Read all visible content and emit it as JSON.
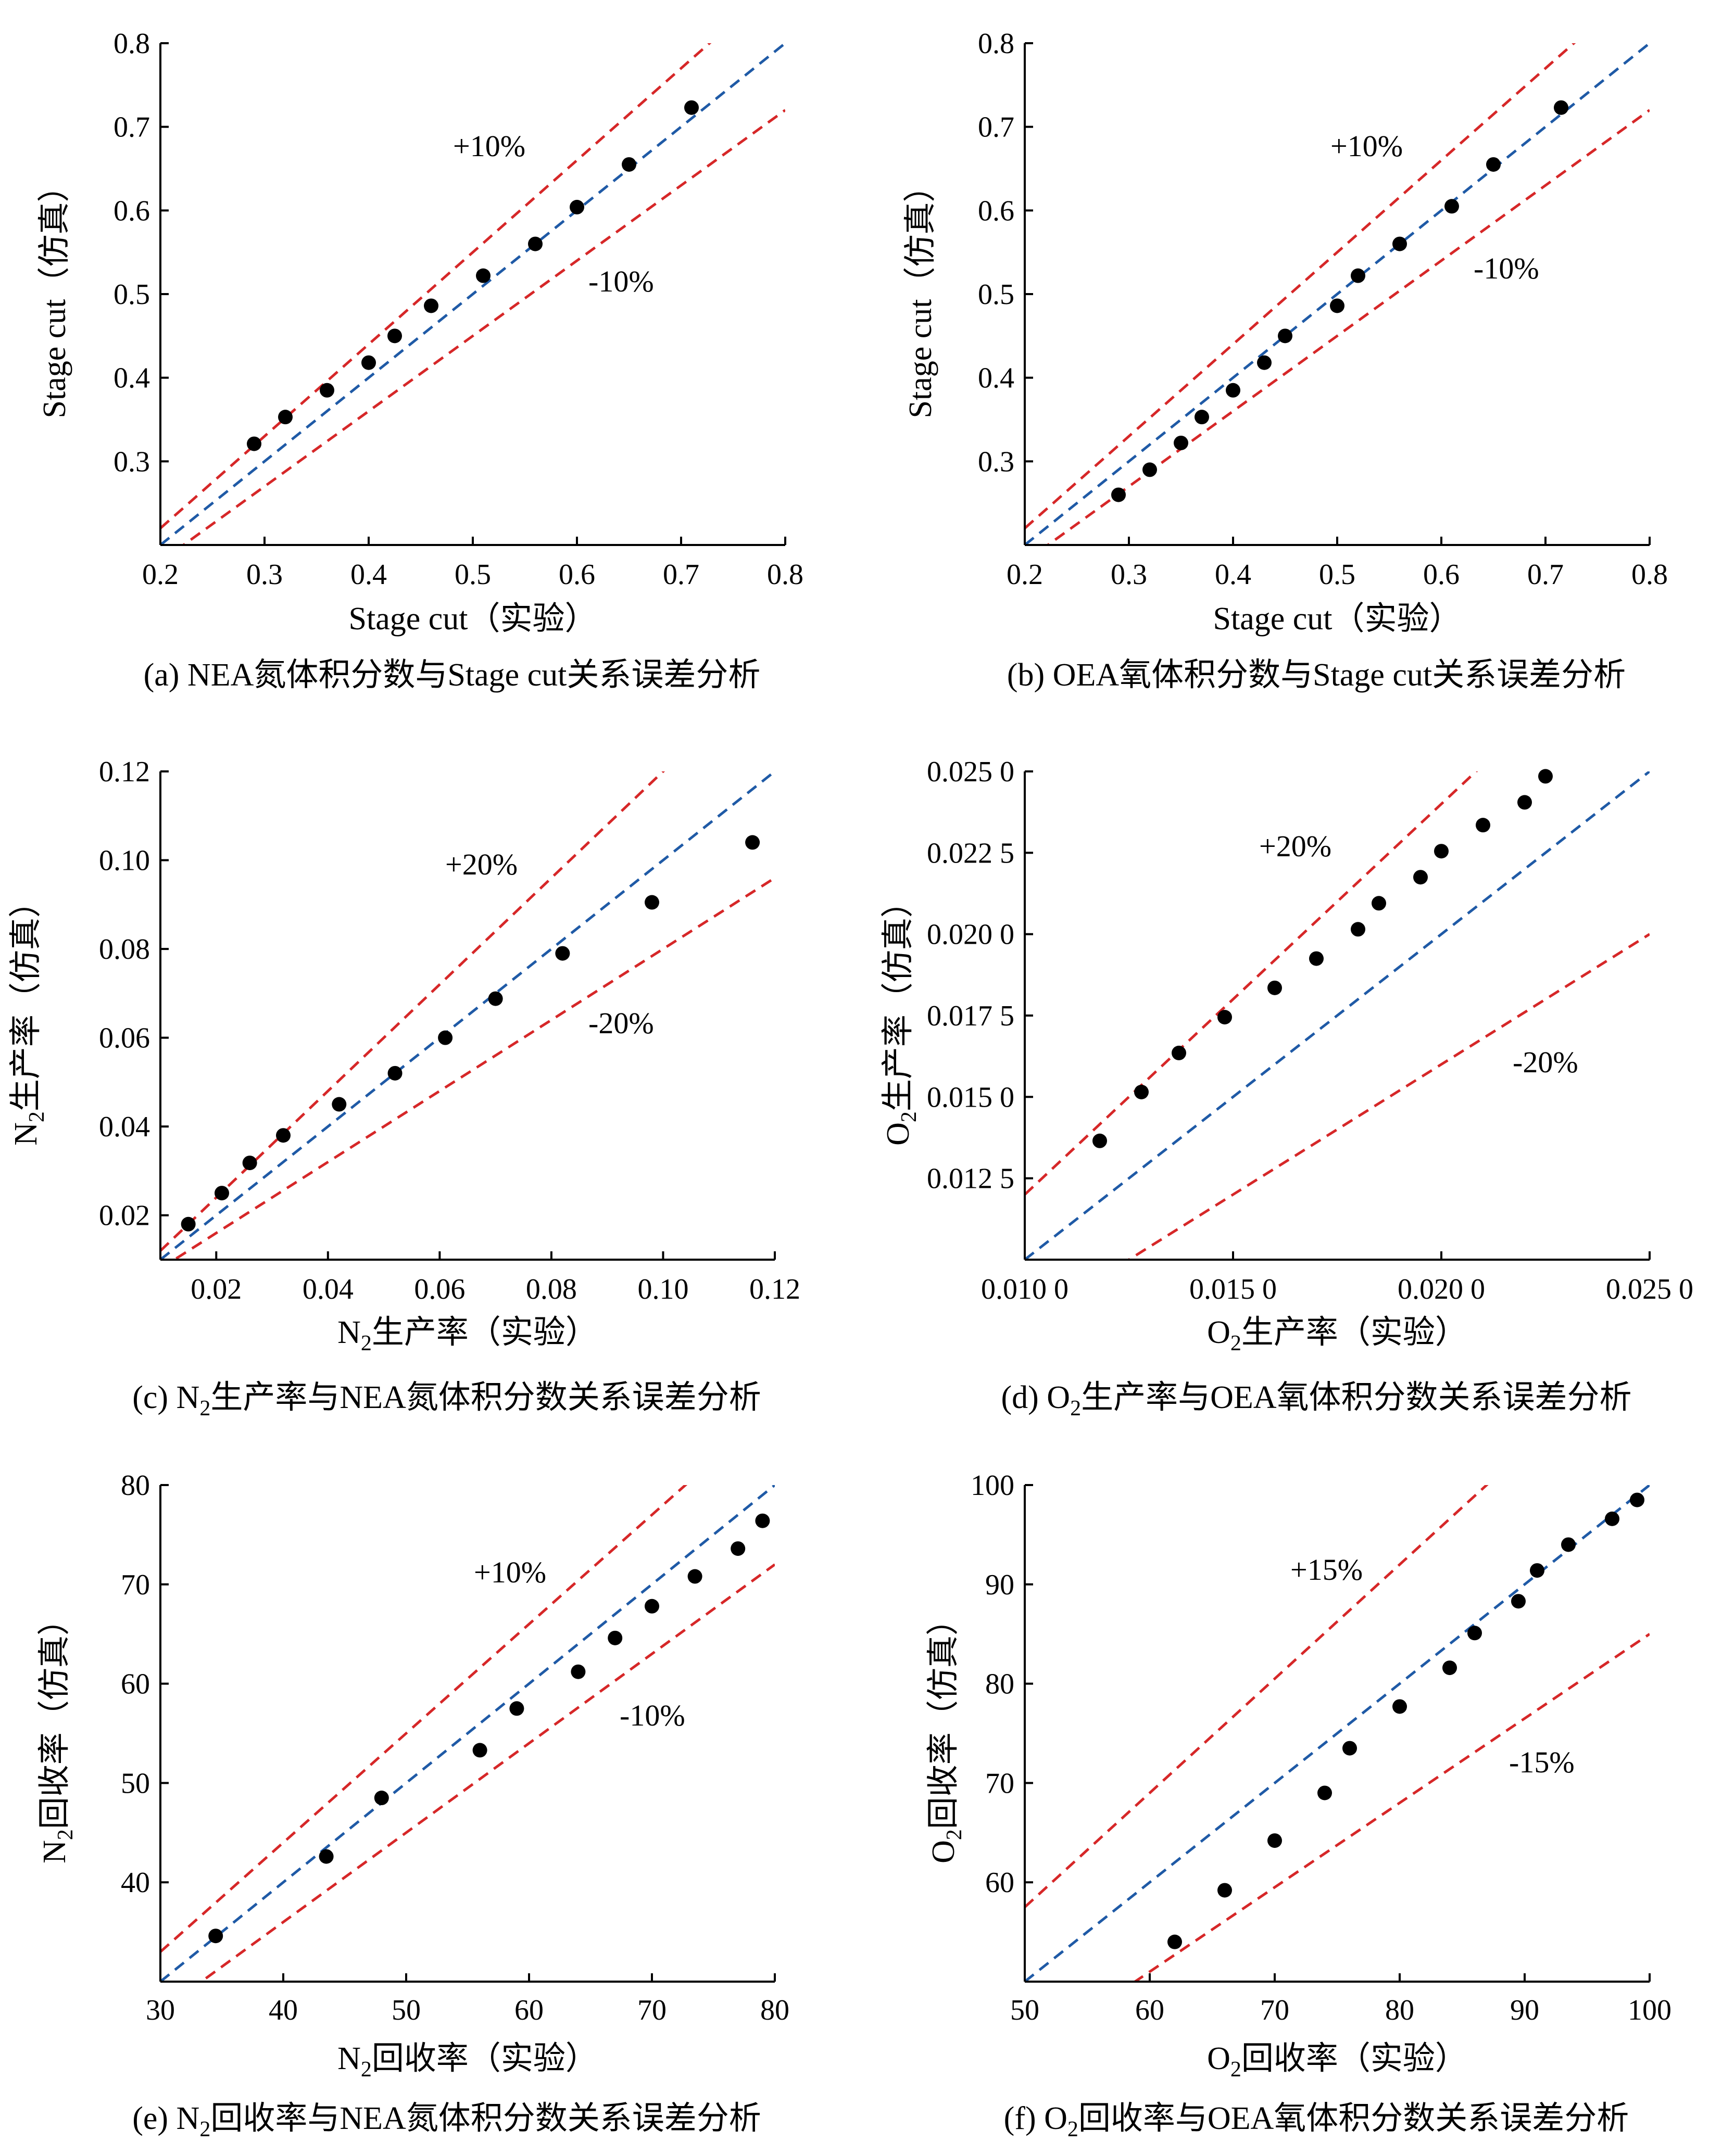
{
  "colors": {
    "upper_lower_lines": "#d62728",
    "ideal_line": "#1f5aa6",
    "points": "#000000"
  },
  "chart_data": [
    {
      "id": "a",
      "type": "scatter",
      "caption": "(a) NEA氮体积分数与Stage cut关系误差分析",
      "xlabel": {
        "text": "Stage cut（实验）"
      },
      "ylabel": {
        "text": "Stage cut（仿真）"
      },
      "xlim": [
        0.2,
        0.8
      ],
      "ylim": [
        0.2,
        0.8
      ],
      "xticks": [
        "0.2",
        "0.3",
        "0.4",
        "0.5",
        "0.6",
        "0.7",
        "0.8"
      ],
      "yticks": [
        "0.3",
        "0.4",
        "0.5",
        "0.6",
        "0.7",
        "0.8"
      ],
      "ytick_values": [
        0.3,
        0.4,
        0.5,
        0.6,
        0.7,
        0.8
      ],
      "error_band": 0.1,
      "labels": {
        "upper": "+10%",
        "lower": "-10%"
      },
      "points": [
        [
          0.29,
          0.321
        ],
        [
          0.32,
          0.353
        ],
        [
          0.36,
          0.385
        ],
        [
          0.4,
          0.418
        ],
        [
          0.425,
          0.45
        ],
        [
          0.46,
          0.486
        ],
        [
          0.51,
          0.522
        ],
        [
          0.56,
          0.56
        ],
        [
          0.6,
          0.604
        ],
        [
          0.65,
          0.655
        ],
        [
          0.71,
          0.723
        ]
      ]
    },
    {
      "id": "b",
      "type": "scatter",
      "caption": "(b) OEA氧体积分数与Stage cut关系误差分析",
      "xlabel": {
        "text": "Stage cut（实验）"
      },
      "ylabel": {
        "text": "Stage cut（仿真）"
      },
      "xlim": [
        0.2,
        0.8
      ],
      "ylim": [
        0.2,
        0.8
      ],
      "xticks": [
        "0.2",
        "0.3",
        "0.4",
        "0.5",
        "0.6",
        "0.7",
        "0.8"
      ],
      "yticks": [
        "0.3",
        "0.4",
        "0.5",
        "0.6",
        "0.7",
        "0.8"
      ],
      "ytick_values": [
        0.3,
        0.4,
        0.5,
        0.6,
        0.7,
        0.8
      ],
      "error_band": 0.1,
      "labels": {
        "upper": "+10%",
        "lower": "-10%"
      },
      "points": [
        [
          0.29,
          0.26
        ],
        [
          0.32,
          0.29
        ],
        [
          0.35,
          0.322
        ],
        [
          0.37,
          0.353
        ],
        [
          0.4,
          0.385
        ],
        [
          0.43,
          0.418
        ],
        [
          0.45,
          0.45
        ],
        [
          0.5,
          0.486
        ],
        [
          0.52,
          0.522
        ],
        [
          0.56,
          0.56
        ],
        [
          0.61,
          0.605
        ],
        [
          0.65,
          0.655
        ],
        [
          0.715,
          0.723
        ]
      ]
    },
    {
      "id": "c",
      "type": "scatter",
      "caption_prefix": "(c) N",
      "caption_sub": "2",
      "caption_suffix": "生产率与NEA氮体积分数关系误差分析",
      "xlabel": {
        "main": "N",
        "sub": "2",
        "rest": "生产率（实验）"
      },
      "ylabel": {
        "main": "N",
        "sub": "2",
        "rest": "生产率（仿真）"
      },
      "xlim": [
        0.01,
        0.12
      ],
      "ylim": [
        0.01,
        0.12
      ],
      "xticks": [
        "0.02",
        "0.04",
        "0.06",
        "0.08",
        "0.10",
        "0.12"
      ],
      "xtick_values": [
        0.02,
        0.04,
        0.06,
        0.08,
        0.1,
        0.12
      ],
      "yticks": [
        "0.02",
        "0.04",
        "0.06",
        "0.08",
        "0.10",
        "0.12"
      ],
      "ytick_values": [
        0.02,
        0.04,
        0.06,
        0.08,
        0.1,
        0.12
      ],
      "error_band": 0.2,
      "labels": {
        "upper": "+20%",
        "lower": "-20%"
      },
      "points": [
        [
          0.015,
          0.018
        ],
        [
          0.021,
          0.025
        ],
        [
          0.026,
          0.0318
        ],
        [
          0.032,
          0.038
        ],
        [
          0.042,
          0.045
        ],
        [
          0.052,
          0.052
        ],
        [
          0.061,
          0.06
        ],
        [
          0.07,
          0.0688
        ],
        [
          0.082,
          0.079
        ],
        [
          0.098,
          0.0905
        ],
        [
          0.116,
          0.104
        ]
      ]
    },
    {
      "id": "d",
      "type": "scatter",
      "caption_prefix": "(d) O",
      "caption_sub": "2",
      "caption_suffix": "生产率与OEA氧体积分数关系误差分析",
      "xlabel": {
        "main": "O",
        "sub": "2",
        "rest": "生产率（实验）"
      },
      "ylabel": {
        "main": "O",
        "sub": "2",
        "rest": "生产率（仿真）"
      },
      "xlim": [
        0.01,
        0.025
      ],
      "ylim": [
        0.01,
        0.025
      ],
      "xticks": [
        "0.010 0",
        "0.015 0",
        "0.020 0",
        "0.025 0"
      ],
      "xtick_values": [
        0.01,
        0.015,
        0.02,
        0.025
      ],
      "yticks": [
        "0.012 5",
        "0.015 0",
        "0.017 5",
        "0.020 0",
        "0.022 5",
        "0.025 0"
      ],
      "ytick_values": [
        0.0125,
        0.015,
        0.0175,
        0.02,
        0.0225,
        0.025
      ],
      "error_band": 0.2,
      "labels": {
        "upper": "+20%",
        "lower": "-20%"
      },
      "points": [
        [
          0.0118,
          0.01365
        ],
        [
          0.0128,
          0.01515
        ],
        [
          0.0137,
          0.01635
        ],
        [
          0.0148,
          0.01745
        ],
        [
          0.016,
          0.01835
        ],
        [
          0.017,
          0.01925
        ],
        [
          0.018,
          0.02015
        ],
        [
          0.0185,
          0.02095
        ],
        [
          0.0195,
          0.02175
        ],
        [
          0.02,
          0.02255
        ],
        [
          0.021,
          0.02335
        ],
        [
          0.022,
          0.02405
        ],
        [
          0.0225,
          0.02485
        ]
      ]
    },
    {
      "id": "e",
      "type": "scatter",
      "caption_prefix": "(e) N",
      "caption_sub": "2",
      "caption_suffix": "回收率与NEA氮体积分数关系误差分析",
      "xlabel": {
        "main": "N",
        "sub": "2",
        "rest": "回收率（实验）"
      },
      "ylabel": {
        "main": "N",
        "sub": "2",
        "rest": "回收率（仿真）"
      },
      "xlim": [
        30,
        80
      ],
      "ylim": [
        30,
        80
      ],
      "xticks": [
        "30",
        "40",
        "50",
        "60",
        "70",
        "80"
      ],
      "xtick_values": [
        30,
        40,
        50,
        60,
        70,
        80
      ],
      "yticks": [
        "40",
        "50",
        "60",
        "70",
        "80"
      ],
      "ytick_values": [
        40,
        50,
        60,
        70,
        80
      ],
      "error_band": 0.1,
      "labels": {
        "upper": "+10%",
        "lower": "-10%"
      },
      "points": [
        [
          34.5,
          34.6
        ],
        [
          43.5,
          42.6
        ],
        [
          48,
          48.5
        ],
        [
          56,
          53.3
        ],
        [
          59,
          57.5
        ],
        [
          64,
          61.2
        ],
        [
          67,
          64.6
        ],
        [
          70,
          67.8
        ],
        [
          73.5,
          70.8
        ],
        [
          77,
          73.6
        ],
        [
          79,
          76.4
        ]
      ]
    },
    {
      "id": "f",
      "type": "scatter",
      "caption_prefix": "(f) O",
      "caption_sub": "2",
      "caption_suffix": "回收率与OEA氧体积分数关系误差分析",
      "xlabel": {
        "main": "O",
        "sub": "2",
        "rest": "回收率（实验）"
      },
      "ylabel": {
        "main": "O",
        "sub": "2",
        "rest": "回收率（仿真）"
      },
      "xlim": [
        50,
        100
      ],
      "ylim": [
        50,
        100
      ],
      "xticks": [
        "50",
        "60",
        "70",
        "80",
        "90",
        "100"
      ],
      "xtick_values": [
        50,
        60,
        70,
        80,
        90,
        100
      ],
      "yticks": [
        "60",
        "70",
        "80",
        "90",
        "100"
      ],
      "ytick_values": [
        60,
        70,
        80,
        90,
        100
      ],
      "error_band": 0.15,
      "labels": {
        "upper": "+15%",
        "lower": "-15%"
      },
      "points": [
        [
          62,
          54
        ],
        [
          66,
          59.2
        ],
        [
          70,
          64.2
        ],
        [
          74,
          69
        ],
        [
          76,
          73.5
        ],
        [
          80,
          77.7
        ],
        [
          84,
          81.6
        ],
        [
          86,
          85.1
        ],
        [
          89.5,
          88.3
        ],
        [
          91,
          91.4
        ],
        [
          93.5,
          94
        ],
        [
          97,
          96.6
        ],
        [
          99,
          98.5
        ]
      ]
    }
  ]
}
